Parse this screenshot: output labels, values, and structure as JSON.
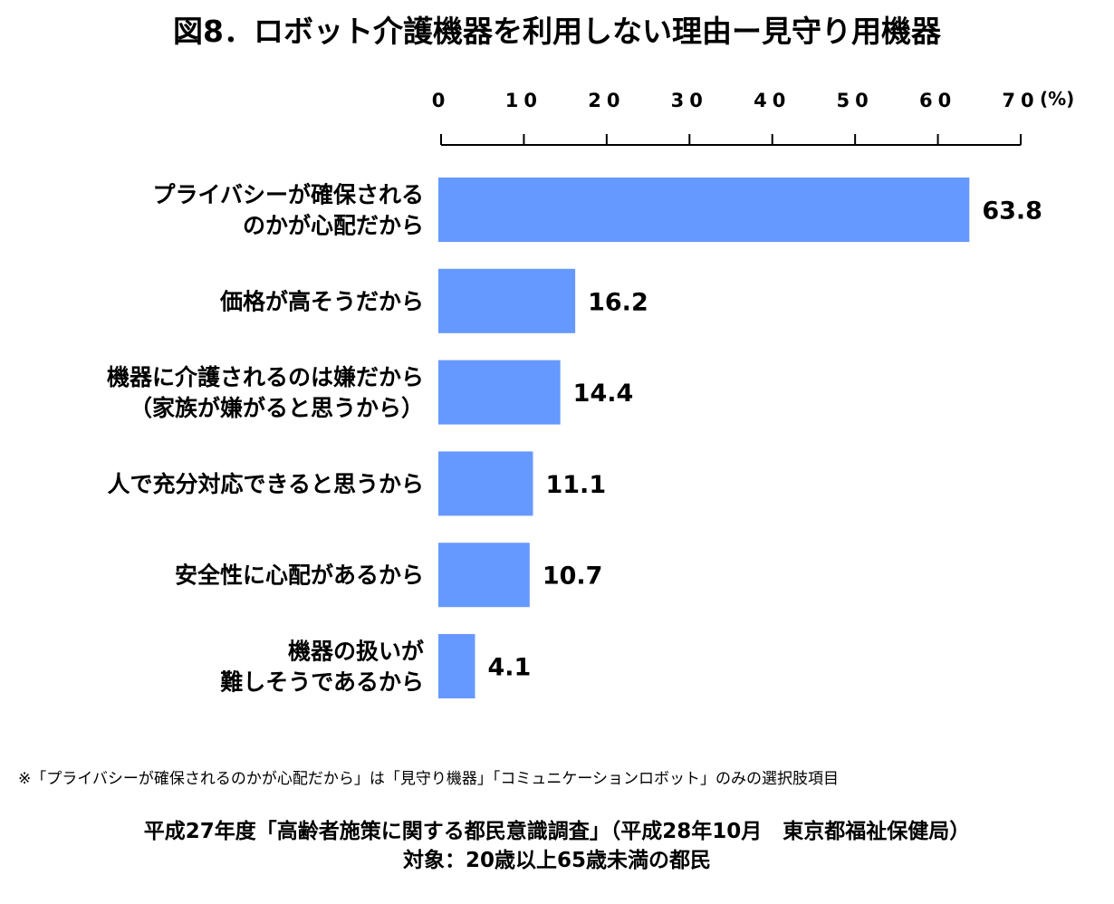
{
  "chart_data": {
    "type": "bar",
    "orientation": "horizontal",
    "title": "図8．ロボット介護機器を利用しない理由ー見守り用機器",
    "unit": "(%)",
    "xlim": [
      0,
      70
    ],
    "ticks": [
      "0",
      "10",
      "20",
      "30",
      "40",
      "50",
      "60",
      "70"
    ],
    "categories": [
      [
        "プライバシーが確保される",
        "のかが心配だから"
      ],
      [
        "価格が高そうだから"
      ],
      [
        "機器に介護されるのは嫌だから",
        "（家族が嫌がると思うから）"
      ],
      [
        "人で充分対応できると思うから"
      ],
      [
        "安全性に心配があるから"
      ],
      [
        "機器の扱いが",
        "難しそうであるから"
      ]
    ],
    "values": [
      63.8,
      16.2,
      14.4,
      11.1,
      10.7,
      4.1
    ],
    "value_labels": [
      "63.8",
      "16.2",
      "14.4",
      "11.1",
      "10.7",
      "4.1"
    ],
    "bar_color": "#6699ff",
    "axis_position": "top",
    "grid": false,
    "legend": "none"
  },
  "footnote": "※「プライバシーが確保されるのかが心配だから」は「見守り機器」「コミュニケーションロボット」のみの選択肢項目",
  "source_line1": "平成27年度「高齢者施策に関する都民意識調査」（平成28年10月　東京都福祉保健局）",
  "source_line2": "対象：20歳以上65歳未満の都民"
}
